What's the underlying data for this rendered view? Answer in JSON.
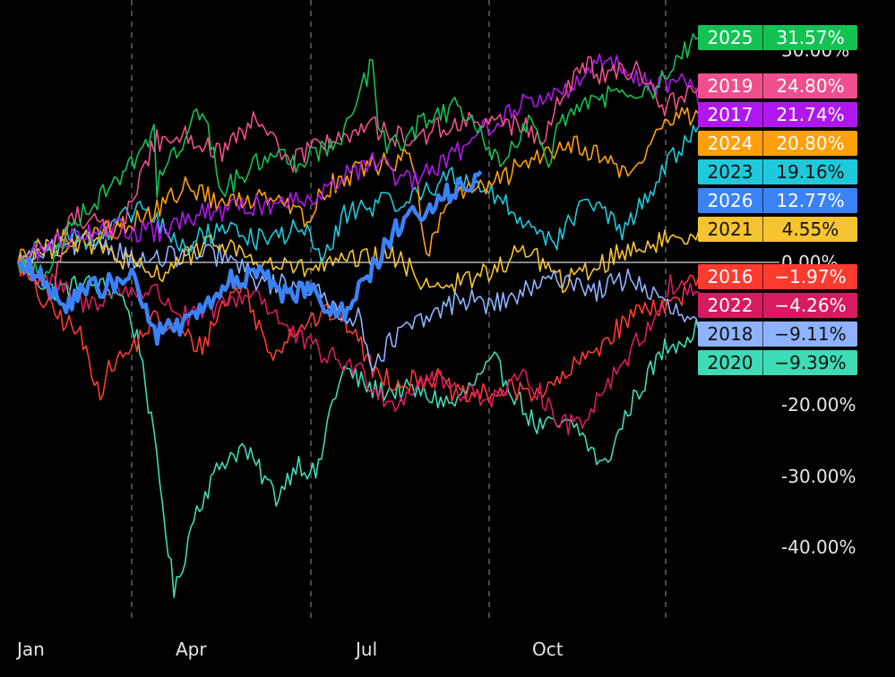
{
  "chart_data": {
    "type": "line",
    "x_axis": {
      "ticks": [
        "Jan",
        "Apr",
        "Jul",
        "Oct"
      ]
    },
    "y_axis": {
      "unit": "%",
      "ticks": [
        "30.00%",
        "0.00%",
        "-20.00%",
        "-30.00%",
        "-40.00%"
      ],
      "range": [
        -47,
        34
      ],
      "zero_line": true
    },
    "grid": "vertical dashed at quarter boundaries",
    "legend_placement": "right",
    "series": [
      {
        "name": "2025",
        "color": "#14c153",
        "end": 31.57,
        "waypoints": [
          [
            0,
            0
          ],
          [
            0.04,
            -2
          ],
          [
            0.08,
            6
          ],
          [
            0.12,
            9
          ],
          [
            0.2,
            18
          ],
          [
            0.2,
            10
          ],
          [
            0.27,
            22
          ],
          [
            0.3,
            10
          ],
          [
            0.38,
            16
          ],
          [
            0.41,
            14
          ],
          [
            0.48,
            18
          ],
          [
            0.52,
            28
          ],
          [
            0.53,
            18
          ],
          [
            0.55,
            16
          ],
          [
            0.6,
            20
          ],
          [
            0.65,
            22
          ],
          [
            0.71,
            13
          ],
          [
            0.75,
            20
          ],
          [
            0.78,
            13
          ],
          [
            0.79,
            20
          ],
          [
            0.84,
            22
          ],
          [
            0.9,
            25
          ],
          [
            0.93,
            23
          ],
          [
            0.96,
            28
          ],
          [
            1.0,
            31.57
          ]
        ]
      },
      {
        "name": "2019",
        "color": "#ef4f8c",
        "end": 24.8,
        "waypoints": [
          [
            0,
            0
          ],
          [
            0.05,
            -4
          ],
          [
            0.08,
            7
          ],
          [
            0.15,
            4
          ],
          [
            0.2,
            17
          ],
          [
            0.25,
            18
          ],
          [
            0.3,
            15
          ],
          [
            0.35,
            20
          ],
          [
            0.4,
            14
          ],
          [
            0.45,
            17
          ],
          [
            0.52,
            19
          ],
          [
            0.58,
            17
          ],
          [
            0.62,
            19
          ],
          [
            0.7,
            20
          ],
          [
            0.77,
            18
          ],
          [
            0.83,
            28
          ],
          [
            0.86,
            26
          ],
          [
            0.91,
            27
          ],
          [
            0.95,
            22
          ],
          [
            1.0,
            24.8
          ]
        ]
      },
      {
        "name": "2017",
        "color": "#b017f0",
        "end": 21.74,
        "waypoints": [
          [
            0,
            0
          ],
          [
            0.06,
            3
          ],
          [
            0.12,
            5
          ],
          [
            0.2,
            4
          ],
          [
            0.28,
            7
          ],
          [
            0.35,
            8
          ],
          [
            0.42,
            9
          ],
          [
            0.48,
            12
          ],
          [
            0.52,
            14
          ],
          [
            0.58,
            11
          ],
          [
            0.64,
            15
          ],
          [
            0.7,
            20
          ],
          [
            0.76,
            23
          ],
          [
            0.81,
            24
          ],
          [
            0.85,
            29
          ],
          [
            0.89,
            27
          ],
          [
            0.94,
            25
          ],
          [
            0.98,
            26
          ],
          [
            1.0,
            21.74
          ]
        ]
      },
      {
        "name": "2024",
        "color": "#ff9f0a",
        "end": 20.8,
        "waypoints": [
          [
            0,
            0
          ],
          [
            0.05,
            3
          ],
          [
            0.12,
            4
          ],
          [
            0.2,
            7
          ],
          [
            0.25,
            11
          ],
          [
            0.3,
            8
          ],
          [
            0.38,
            10
          ],
          [
            0.42,
            6
          ],
          [
            0.46,
            11
          ],
          [
            0.5,
            13
          ],
          [
            0.58,
            15
          ],
          [
            0.6,
            0
          ],
          [
            0.63,
            9
          ],
          [
            0.7,
            11
          ],
          [
            0.76,
            15
          ],
          [
            0.82,
            17
          ],
          [
            0.87,
            14
          ],
          [
            0.9,
            12
          ],
          [
            0.95,
            20
          ],
          [
            1.0,
            20.8
          ]
        ]
      },
      {
        "name": "2023",
        "color": "#1ec9dc",
        "end": 19.16,
        "waypoints": [
          [
            0,
            0
          ],
          [
            0.06,
            4
          ],
          [
            0.12,
            3
          ],
          [
            0.18,
            8
          ],
          [
            0.24,
            2
          ],
          [
            0.3,
            5
          ],
          [
            0.36,
            3
          ],
          [
            0.42,
            5
          ],
          [
            0.45,
            0
          ],
          [
            0.48,
            7
          ],
          [
            0.52,
            8
          ],
          [
            0.58,
            9
          ],
          [
            0.63,
            12
          ],
          [
            0.68,
            11
          ],
          [
            0.74,
            6
          ],
          [
            0.79,
            3
          ],
          [
            0.84,
            9
          ],
          [
            0.89,
            4
          ],
          [
            0.94,
            12
          ],
          [
            1.0,
            19.16
          ]
        ]
      },
      {
        "name": "2026",
        "color": "#3b82f6",
        "end": 12.77,
        "waypoints": [
          [
            0,
            0
          ],
          [
            0.03,
            -2
          ],
          [
            0.06,
            -6
          ],
          [
            0.1,
            -4
          ],
          [
            0.14,
            -3
          ],
          [
            0.17,
            -2
          ],
          [
            0.2,
            -10
          ],
          [
            0.24,
            -9
          ],
          [
            0.28,
            -6
          ],
          [
            0.3,
            -4
          ],
          [
            0.32,
            -2
          ],
          [
            0.36,
            -2
          ],
          [
            0.4,
            -5
          ],
          [
            0.43,
            -3
          ],
          [
            0.47,
            -8
          ],
          [
            0.5,
            -4
          ],
          [
            0.55,
            4
          ],
          [
            0.6,
            8
          ],
          [
            0.64,
            10
          ],
          [
            0.68,
            12.77
          ]
        ]
      },
      {
        "name": "2021",
        "color": "#f6c431",
        "end": 4.55,
        "waypoints": [
          [
            0,
            0
          ],
          [
            0.05,
            2
          ],
          [
            0.1,
            3
          ],
          [
            0.16,
            0
          ],
          [
            0.2,
            -2
          ],
          [
            0.25,
            1
          ],
          [
            0.3,
            3
          ],
          [
            0.35,
            0
          ],
          [
            0.42,
            -1
          ],
          [
            0.48,
            0
          ],
          [
            0.55,
            1
          ],
          [
            0.6,
            -3
          ],
          [
            0.65,
            -3
          ],
          [
            0.7,
            -1
          ],
          [
            0.75,
            2
          ],
          [
            0.8,
            -3
          ],
          [
            0.86,
            0
          ],
          [
            0.9,
            2
          ],
          [
            0.95,
            3
          ],
          [
            1.0,
            4.55
          ]
        ]
      },
      {
        "name": "2016",
        "color": "#ff3b30",
        "end": -1.97,
        "waypoints": [
          [
            0,
            0
          ],
          [
            0.04,
            -6
          ],
          [
            0.09,
            -10
          ],
          [
            0.12,
            -18
          ],
          [
            0.14,
            -14
          ],
          [
            0.16,
            -13
          ],
          [
            0.2,
            -8
          ],
          [
            0.24,
            -10
          ],
          [
            0.27,
            -12
          ],
          [
            0.3,
            -6
          ],
          [
            0.33,
            -3
          ],
          [
            0.37,
            -13
          ],
          [
            0.41,
            -9
          ],
          [
            0.46,
            -7
          ],
          [
            0.49,
            -9
          ],
          [
            0.52,
            -15
          ],
          [
            0.56,
            -17
          ],
          [
            0.61,
            -16
          ],
          [
            0.65,
            -19
          ],
          [
            0.72,
            -18
          ],
          [
            0.78,
            -18
          ],
          [
            0.85,
            -12
          ],
          [
            0.92,
            -6
          ],
          [
            0.96,
            -6
          ],
          [
            1.0,
            -1.97
          ]
        ]
      },
      {
        "name": "2022",
        "color": "#d81b60",
        "end": -4.26,
        "waypoints": [
          [
            0,
            0
          ],
          [
            0.05,
            -3
          ],
          [
            0.1,
            -6
          ],
          [
            0.15,
            -4
          ],
          [
            0.2,
            -4
          ],
          [
            0.25,
            -8
          ],
          [
            0.3,
            -6
          ],
          [
            0.35,
            -4
          ],
          [
            0.4,
            -10
          ],
          [
            0.45,
            -13
          ],
          [
            0.5,
            -15
          ],
          [
            0.55,
            -20
          ],
          [
            0.6,
            -16
          ],
          [
            0.65,
            -18
          ],
          [
            0.7,
            -19
          ],
          [
            0.75,
            -16
          ],
          [
            0.8,
            -23
          ],
          [
            0.83,
            -22
          ],
          [
            0.88,
            -15
          ],
          [
            0.92,
            -10
          ],
          [
            0.96,
            -3
          ],
          [
            1.0,
            -4.26
          ]
        ]
      },
      {
        "name": "2018",
        "color": "#8fb2ff",
        "end": -9.11,
        "waypoints": [
          [
            0,
            0
          ],
          [
            0.06,
            2
          ],
          [
            0.12,
            3
          ],
          [
            0.18,
            0
          ],
          [
            0.24,
            1
          ],
          [
            0.3,
            1
          ],
          [
            0.36,
            -3
          ],
          [
            0.42,
            -3
          ],
          [
            0.46,
            -6
          ],
          [
            0.5,
            -8
          ],
          [
            0.52,
            -14
          ],
          [
            0.56,
            -10
          ],
          [
            0.6,
            -8
          ],
          [
            0.65,
            -5
          ],
          [
            0.7,
            -6
          ],
          [
            0.75,
            -4
          ],
          [
            0.8,
            -2
          ],
          [
            0.85,
            -4
          ],
          [
            0.9,
            -2
          ],
          [
            0.95,
            -6
          ],
          [
            1.0,
            -9.11
          ]
        ]
      },
      {
        "name": "2020",
        "color": "#3ddbb6",
        "end": -9.39,
        "waypoints": [
          [
            0,
            0
          ],
          [
            0.05,
            -4
          ],
          [
            0.1,
            -3
          ],
          [
            0.15,
            -4
          ],
          [
            0.18,
            -12
          ],
          [
            0.21,
            -32
          ],
          [
            0.23,
            -47
          ],
          [
            0.26,
            -35
          ],
          [
            0.3,
            -28
          ],
          [
            0.33,
            -26
          ],
          [
            0.36,
            -30
          ],
          [
            0.38,
            -33
          ],
          [
            0.41,
            -28
          ],
          [
            0.44,
            -30
          ],
          [
            0.46,
            -20
          ],
          [
            0.48,
            -15
          ],
          [
            0.52,
            -18
          ],
          [
            0.58,
            -18
          ],
          [
            0.64,
            -20
          ],
          [
            0.7,
            -14
          ],
          [
            0.76,
            -23
          ],
          [
            0.82,
            -23
          ],
          [
            0.86,
            -29
          ],
          [
            0.9,
            -20
          ],
          [
            0.95,
            -12
          ],
          [
            1.0,
            -9.39
          ]
        ]
      }
    ],
    "tags": [
      {
        "year": "2025",
        "value": "31.57%",
        "color": "#14c153",
        "text_color": "#ffffff"
      },
      {
        "year": "2019",
        "value": "24.80%",
        "color": "#ef4f8c",
        "text_color": "#ffffff"
      },
      {
        "year": "2017",
        "value": "21.74%",
        "color": "#b017f0",
        "text_color": "#ffffff"
      },
      {
        "year": "2024",
        "value": "20.80%",
        "color": "#ff9f0a",
        "text_color": "#ffffff"
      },
      {
        "year": "2023",
        "value": "19.16%",
        "color": "#1ec9dc",
        "text_color": "#111111"
      },
      {
        "year": "2026",
        "value": "12.77%",
        "color": "#3b82f6",
        "text_color": "#ffffff"
      },
      {
        "year": "2021",
        "value": "4.55%",
        "color": "#f6c431",
        "text_color": "#111111"
      },
      {
        "year": "2016",
        "value": "−1.97%",
        "color": "#ff3b30",
        "text_color": "#ffffff"
      },
      {
        "year": "2022",
        "value": "−4.26%",
        "color": "#d81b60",
        "text_color": "#ffffff"
      },
      {
        "year": "2018",
        "value": "−9.11%",
        "color": "#8fb2ff",
        "text_color": "#111111"
      },
      {
        "year": "2020",
        "value": "−9.39%",
        "color": "#3ddbb6",
        "text_color": "#111111"
      }
    ]
  }
}
